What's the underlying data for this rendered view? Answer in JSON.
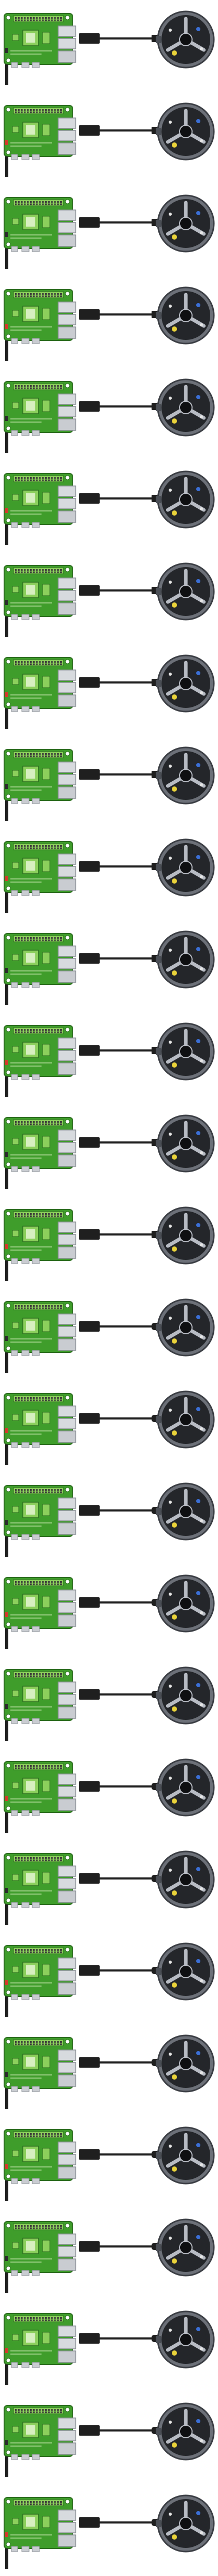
{
  "diagram": {
    "panel_count": 28,
    "panels": [
      {
        "index": 1,
        "cable_type": "micro-usb",
        "pi_variant": "pi4"
      },
      {
        "index": 2,
        "cable_type": "micro-usb",
        "pi_variant": "pi3"
      },
      {
        "index": 3,
        "cable_type": "micro-usb",
        "pi_variant": "pi4"
      },
      {
        "index": 4,
        "cable_type": "micro-usb",
        "pi_variant": "pi3"
      },
      {
        "index": 5,
        "cable_type": "micro-usb",
        "pi_variant": "pi4"
      },
      {
        "index": 6,
        "cable_type": "micro-usb",
        "pi_variant": "pi3"
      },
      {
        "index": 7,
        "cable_type": "micro-usb",
        "pi_variant": "pi4"
      },
      {
        "index": 8,
        "cable_type": "micro-usb",
        "pi_variant": "pi3"
      },
      {
        "index": 9,
        "cable_type": "micro-usb",
        "pi_variant": "pi4"
      },
      {
        "index": 10,
        "cable_type": "micro-usb",
        "pi_variant": "pi3"
      },
      {
        "index": 11,
        "cable_type": "micro-usb",
        "pi_variant": "pi4"
      },
      {
        "index": 12,
        "cable_type": "micro-usb",
        "pi_variant": "pi3"
      },
      {
        "index": 13,
        "cable_type": "micro-usb",
        "pi_variant": "pi4"
      },
      {
        "index": 14,
        "cable_type": "micro-usb",
        "pi_variant": "pi3"
      },
      {
        "index": 15,
        "cable_type": "usb-c",
        "pi_variant": "pi4"
      },
      {
        "index": 16,
        "cable_type": "usb-c",
        "pi_variant": "pi3"
      },
      {
        "index": 17,
        "cable_type": "usb-c",
        "pi_variant": "pi4"
      },
      {
        "index": 18,
        "cable_type": "usb-c",
        "pi_variant": "pi3"
      },
      {
        "index": 19,
        "cable_type": "usb-c",
        "pi_variant": "pi4"
      },
      {
        "index": 20,
        "cable_type": "usb-c",
        "pi_variant": "pi3"
      },
      {
        "index": 21,
        "cable_type": "usb-c",
        "pi_variant": "pi4"
      },
      {
        "index": 22,
        "cable_type": "usb-c",
        "pi_variant": "pi3"
      },
      {
        "index": 23,
        "cable_type": "usb-c",
        "pi_variant": "pi4"
      },
      {
        "index": 24,
        "cable_type": "usb-c",
        "pi_variant": "pi3"
      },
      {
        "index": 25,
        "cable_type": "usb-c",
        "pi_variant": "pi4"
      },
      {
        "index": 26,
        "cable_type": "usb-c",
        "pi_variant": "pi3"
      },
      {
        "index": 27,
        "cable_type": "usb-c",
        "pi_variant": "pi4"
      },
      {
        "index": 28,
        "cable_type": "usb-c",
        "pi_variant": "pi3"
      }
    ],
    "icons": {
      "board": "raspberry-pi-board-icon",
      "cable": "usb-cable-icon",
      "device": "round-camera-module-icon"
    },
    "colors": {
      "pcb": "#3f9d2b",
      "pcb_light": "#8ccf5c",
      "pcb_dark": "#2c6e1f",
      "silk": "#d7efc0",
      "cable": "#1f1f1f",
      "device_body": "#24262a",
      "device_ring": "#6c7078",
      "device_accent": "#e9d23a",
      "device_blue": "#3b6fd6",
      "background": "#ffffff"
    }
  }
}
